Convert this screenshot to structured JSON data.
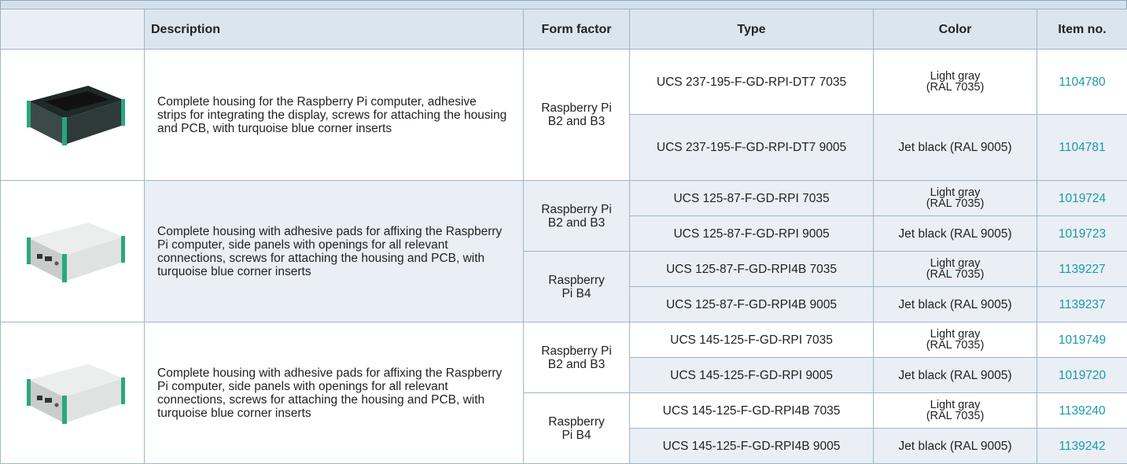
{
  "table": {
    "header": [
      "Description",
      "Form factor",
      "Type",
      "Color",
      "Item no."
    ],
    "groups": [
      {
        "description": "Complete housing for the Raspberry Pi computer, adhesive strips for integrating the display, screws for attaching the housing and PCB, with turquoise blue corner inserts",
        "form_factors": [
          {
            "label": "Raspberry Pi\nB2 and B3",
            "rows": [
              {
                "type": "UCS 237-195-F-GD-RPI-DT7 7035",
                "color": "Light gray\n(RAL 7035)",
                "item": "1104780"
              },
              {
                "type": "UCS 237-195-F-GD-RPI-DT7 9005",
                "color": "Jet black (RAL 9005)",
                "item": "1104781"
              }
            ]
          }
        ]
      },
      {
        "description": "Complete housing with adhesive pads for affixing the Raspberry Pi computer, side panels with openings for all relevant connections, screws for attaching the housing and PCB, with turquoise blue corner inserts",
        "form_factors": [
          {
            "label": "Raspberry Pi\nB2 and B3",
            "rows": [
              {
                "type": "UCS 125-87-F-GD-RPI 7035",
                "color": "Light gray\n(RAL 7035)",
                "item": "1019724"
              },
              {
                "type": "UCS 125-87-F-GD-RPI 9005",
                "color": "Jet black (RAL 9005)",
                "item": "1019723"
              }
            ]
          },
          {
            "label": "Raspberry\nPi B4",
            "rows": [
              {
                "type": "UCS 125-87-F-GD-RPI4B 7035",
                "color": "Light gray\n(RAL 7035)",
                "item": "1139227"
              },
              {
                "type": "UCS 125-87-F-GD-RPI4B 9005",
                "color": "Jet black (RAL 9005)",
                "item": "1139237"
              }
            ]
          }
        ]
      },
      {
        "description": "Complete housing with adhesive pads for affixing the Raspberry Pi computer, side panels with openings for all relevant connections, screws for attaching the housing and PCB, with turquoise blue corner inserts",
        "form_factors": [
          {
            "label": "Raspberry Pi\nB2 and B3",
            "rows": [
              {
                "type": "UCS 145-125-F-GD-RPI 7035",
                "color": "Light gray\n(RAL 7035)",
                "item": "1019749"
              },
              {
                "type": "UCS 145-125-F-GD-RPI 9005",
                "color": "Jet black (RAL 9005)",
                "item": "1019720"
              }
            ]
          },
          {
            "label": "Raspberry\nPi B4",
            "rows": [
              {
                "type": "UCS 145-125-F-GD-RPI4B 7035",
                "color": "Light gray\n(RAL 7035)",
                "item": "1139240"
              },
              {
                "type": "UCS 145-125-F-GD-RPI4B 9005",
                "color": "Jet black (RAL 9005)",
                "item": "1139242"
              }
            ]
          }
        ]
      }
    ]
  }
}
